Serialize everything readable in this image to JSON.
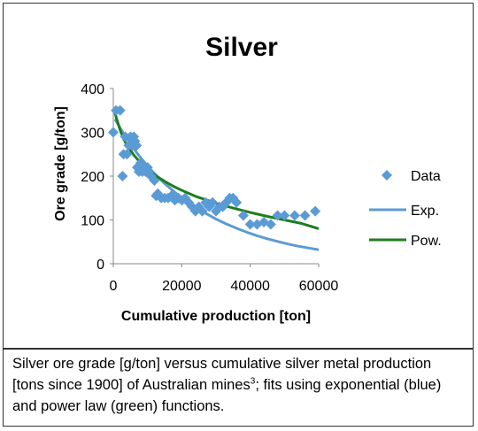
{
  "chart_data": {
    "type": "scatter",
    "title": "Silver",
    "xlabel": "Cumulative production [ton]",
    "ylabel": "Ore grade [g/ton]",
    "xlim": [
      0,
      60000
    ],
    "ylim": [
      0,
      400
    ],
    "x_ticks": [
      "0",
      "20000",
      "40000",
      "60000"
    ],
    "y_ticks": [
      "0",
      "100",
      "200",
      "300",
      "400"
    ],
    "grid": false,
    "legend_position": "right",
    "colors": {
      "data": "#5b9bd5",
      "exp": "#5b9bd5",
      "pow": "#1e7d1e"
    },
    "series": [
      {
        "name": "Data",
        "kind": "points",
        "x": [
          0,
          800,
          2000,
          2700,
          3000,
          3500,
          4000,
          4500,
          5000,
          5500,
          6000,
          6300,
          6800,
          7000,
          7500,
          8000,
          8500,
          9000,
          9500,
          10000,
          10500,
          11000,
          12000,
          12500,
          13000,
          14000,
          15000,
          16000,
          17000,
          18000,
          19000,
          20000,
          21000,
          22000,
          23000,
          24000,
          25000,
          26000,
          27000,
          28000,
          29000,
          30000,
          31000,
          32000,
          33000,
          34000,
          35000,
          36000,
          38000,
          40000,
          42000,
          44000,
          46000,
          48000,
          50000,
          53000,
          56000,
          59000
        ],
        "y": [
          300,
          350,
          350,
          200,
          250,
          290,
          250,
          270,
          290,
          270,
          290,
          280,
          270,
          220,
          210,
          230,
          210,
          220,
          210,
          220,
          210,
          200,
          190,
          155,
          160,
          150,
          150,
          150,
          155,
          145,
          150,
          145,
          150,
          140,
          130,
          120,
          130,
          120,
          140,
          130,
          140,
          120,
          130,
          130,
          140,
          150,
          150,
          140,
          110,
          90,
          90,
          95,
          90,
          110,
          110,
          110,
          110,
          120
        ]
      },
      {
        "name": "Exp.",
        "kind": "line",
        "x": [
          500,
          2000,
          4000,
          6000,
          8000,
          10000,
          12000,
          15000,
          18000,
          21000,
          24000,
          27000,
          30000,
          33000,
          36000,
          39000,
          42000,
          45000,
          48000,
          51000,
          54000,
          57000,
          60000
        ],
        "y": [
          330,
          310,
          285,
          262,
          242,
          223,
          206,
          183,
          163,
          145,
          129,
          115,
          102,
          91,
          81,
          72,
          64,
          57,
          51,
          45,
          40,
          36,
          32
        ]
      },
      {
        "name": "Pow.",
        "kind": "line",
        "x": [
          500,
          1000,
          2000,
          3000,
          4000,
          6000,
          8000,
          10000,
          12000,
          15000,
          18000,
          21000,
          24000,
          27000,
          30000,
          35000,
          40000,
          45000,
          50000,
          55000,
          60000
        ],
        "y": [
          345,
          330,
          305,
          285,
          270,
          248,
          230,
          215,
          203,
          188,
          175,
          164,
          154,
          146,
          138,
          127,
          117,
          108,
          100,
          92,
          80
        ]
      }
    ]
  },
  "caption": {
    "text": "Silver ore grade [g/ton] versus cumulative silver metal production [tons since 1900] of Australian mines",
    "superscript": "3",
    "text_after": "; fits using exponential (blue) and power law (green) functions."
  }
}
